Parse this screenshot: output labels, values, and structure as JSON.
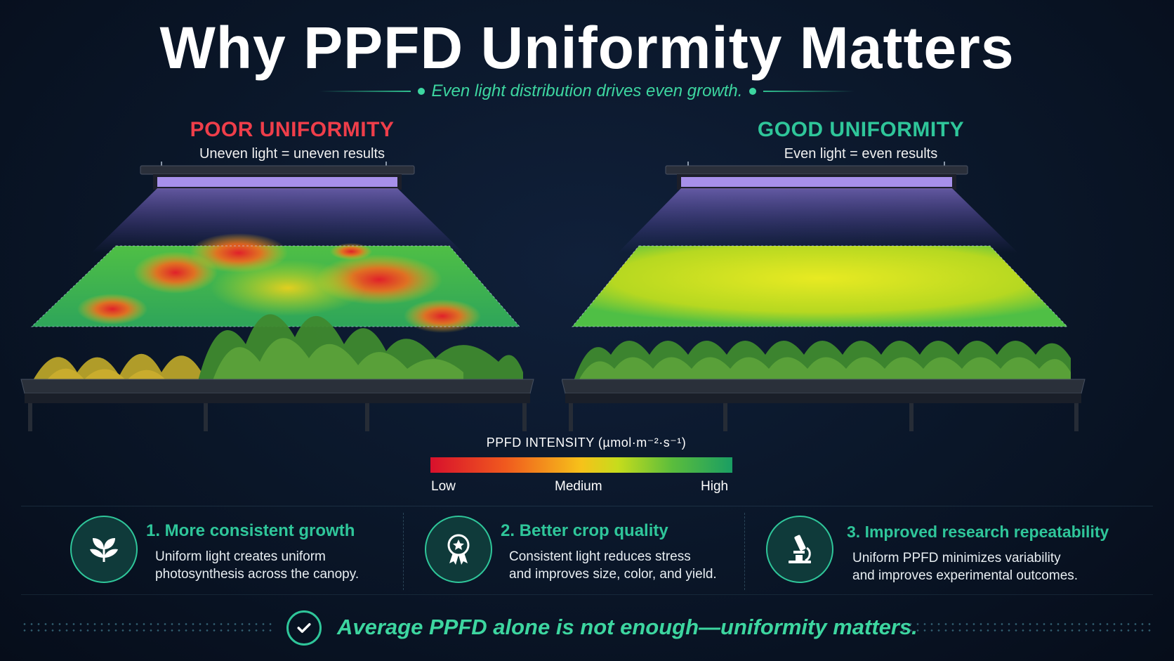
{
  "header": {
    "title": "Why PPFD Uniformity Matters",
    "subtitle": "Even light distribution drives even growth."
  },
  "panels": {
    "poor": {
      "heading": "POOR UNIFORMITY",
      "caption": "Uneven light = uneven results",
      "color": "#ef3e4a"
    },
    "good": {
      "heading": "GOOD UNIFORMITY",
      "caption": "Even light = even results",
      "color": "#2fc69a"
    }
  },
  "legend": {
    "title": "PPFD INTENSITY (µmol·m⁻²·s⁻¹)",
    "low": "Low",
    "medium": "Medium",
    "high": "High"
  },
  "benefits": [
    {
      "title": "1. More consistent growth",
      "line1": "Uniform light creates uniform",
      "line2": "photosynthesis across the canopy.",
      "icon": "plant-icon"
    },
    {
      "title": "2. Better crop quality",
      "line1": "Consistent light reduces stress",
      "line2": "and improves size, color, and yield.",
      "icon": "award-ribbon-icon"
    },
    {
      "title": "3. Improved research repeatability",
      "line1": "Uniform PPFD minimizes variability",
      "line2": "and improves experimental outcomes.",
      "icon": "microscope-icon"
    }
  ],
  "footer": {
    "message": "Average PPFD alone is not enough—uniformity matters.",
    "icon": "check-icon"
  },
  "colors": {
    "accent": "#2fc69a",
    "poor": "#ef3e4a",
    "background": "#0a1628"
  }
}
